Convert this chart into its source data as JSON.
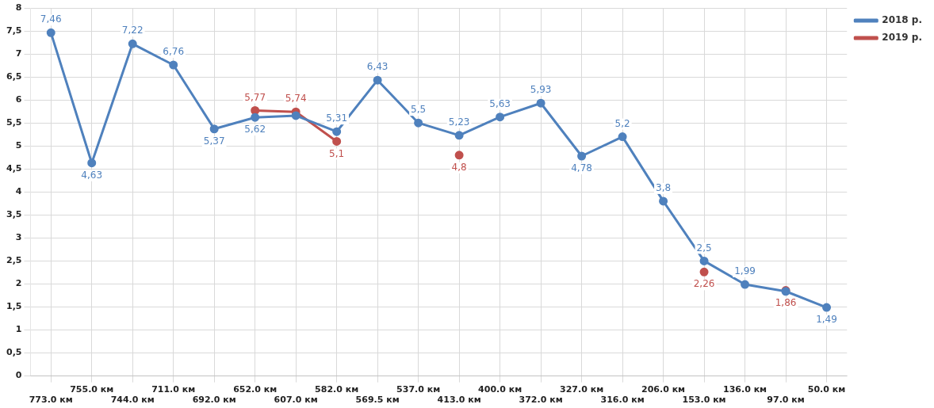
{
  "chart_data": {
    "type": "line",
    "categories": [
      "773.0 км",
      "755.0 км",
      "744.0 км",
      "711.0 км",
      "692.0 км",
      "652.0 км",
      "607.0 км",
      "582.0 км",
      "569.5 км",
      "537.0 км",
      "413.0 км",
      "400.0 км",
      "372.0 км",
      "327.0 км",
      "316.0 км",
      "206.0 км",
      "153.0 км",
      "136.0 км",
      "97.0 км",
      "50.0 км"
    ],
    "series": [
      {
        "name": "2018 р.",
        "color": "#4f81bd",
        "values": [
          7.46,
          4.63,
          7.22,
          6.76,
          5.37,
          5.62,
          5.66,
          5.31,
          6.43,
          5.5,
          5.23,
          5.63,
          5.93,
          4.78,
          5.2,
          3.8,
          2.5,
          1.99,
          1.84,
          1.49
        ],
        "value_labels": [
          "7,46",
          "4,63",
          "7,22",
          "6,76",
          "5,37",
          "5,62",
          null,
          "5,31",
          "6,43",
          "5,5",
          "5,23",
          "5,63",
          "5,93",
          "4,78",
          "5,2",
          "3,8",
          "2,5",
          "1,99",
          null,
          "1,49"
        ]
      },
      {
        "name": "2019 р.",
        "color": "#c0504d",
        "values": [
          null,
          null,
          null,
          null,
          null,
          5.77,
          5.74,
          5.1,
          null,
          null,
          4.8,
          null,
          null,
          null,
          null,
          null,
          2.26,
          null,
          1.86,
          null
        ],
        "value_labels": [
          null,
          null,
          null,
          null,
          null,
          "5,77",
          "5,74",
          "5,1",
          null,
          null,
          "4,8",
          null,
          null,
          null,
          null,
          null,
          "2,26",
          null,
          "1,86",
          null
        ]
      }
    ],
    "ylim": [
      0,
      8
    ],
    "yticks": [
      0,
      {
        "value": 0.5,
        "label": "0,5"
      },
      1,
      {
        "value": 1.5,
        "label": "1,5"
      },
      2,
      {
        "value": 2.5,
        "label": "2,5"
      },
      3,
      {
        "value": 3.5,
        "label": "3,5"
      },
      4,
      {
        "value": 4.5,
        "label": "4,5"
      },
      5,
      {
        "value": 5.5,
        "label": "5,5"
      },
      6,
      {
        "value": 6.5,
        "label": "6,5"
      },
      7,
      {
        "value": 7.5,
        "label": "7,5"
      },
      8
    ],
    "grid": true,
    "legend": "top right",
    "marker": "circle",
    "line_style": "solid"
  }
}
